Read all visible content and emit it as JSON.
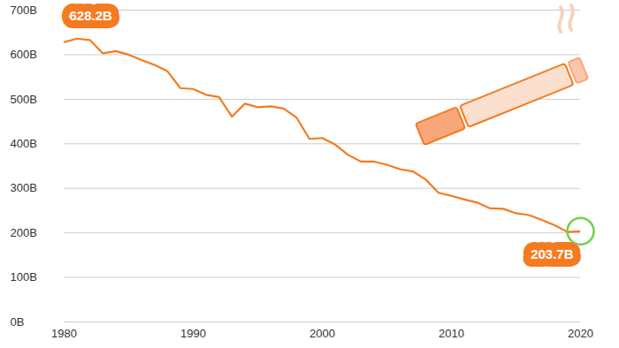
{
  "chart_data": {
    "type": "line",
    "x": [
      1980,
      1981,
      1982,
      1983,
      1984,
      1985,
      1986,
      1987,
      1988,
      1989,
      1990,
      1991,
      1992,
      1993,
      1994,
      1995,
      1996,
      1997,
      1998,
      1999,
      2000,
      2001,
      2002,
      2003,
      2004,
      2005,
      2006,
      2007,
      2008,
      2009,
      2010,
      2011,
      2012,
      2013,
      2014,
      2015,
      2016,
      2017,
      2018,
      2019,
      2020
    ],
    "values": [
      628.2,
      636,
      633,
      603,
      608,
      600,
      588,
      577,
      563,
      525,
      523,
      510,
      505,
      461,
      490,
      482,
      484,
      479,
      459,
      411,
      413,
      398,
      375,
      360,
      360,
      353,
      343,
      338,
      320,
      290,
      283,
      275,
      268,
      255,
      254,
      244,
      240,
      229,
      217,
      202,
      203.7
    ],
    "color": "#f47b20",
    "xlim": [
      1980,
      2020
    ],
    "xticks": [
      1980,
      1990,
      2000,
      2010,
      2020
    ],
    "ylim": [
      0,
      700
    ],
    "yticks": [
      {
        "value": 0,
        "label": "0B"
      },
      {
        "value": 100,
        "label": "100B"
      },
      {
        "value": 200,
        "label": "200B"
      },
      {
        "value": 300,
        "label": "300B"
      },
      {
        "value": 400,
        "label": "400B"
      },
      {
        "value": 500,
        "label": "500B"
      },
      {
        "value": 600,
        "label": "600B"
      },
      {
        "value": 700,
        "label": "700B"
      }
    ],
    "grid": true,
    "annotations": [
      {
        "x": 1980,
        "y": 628.2,
        "text": "628.2B"
      },
      {
        "x": 2020,
        "y": 203.7,
        "text": "203.7B"
      }
    ]
  }
}
